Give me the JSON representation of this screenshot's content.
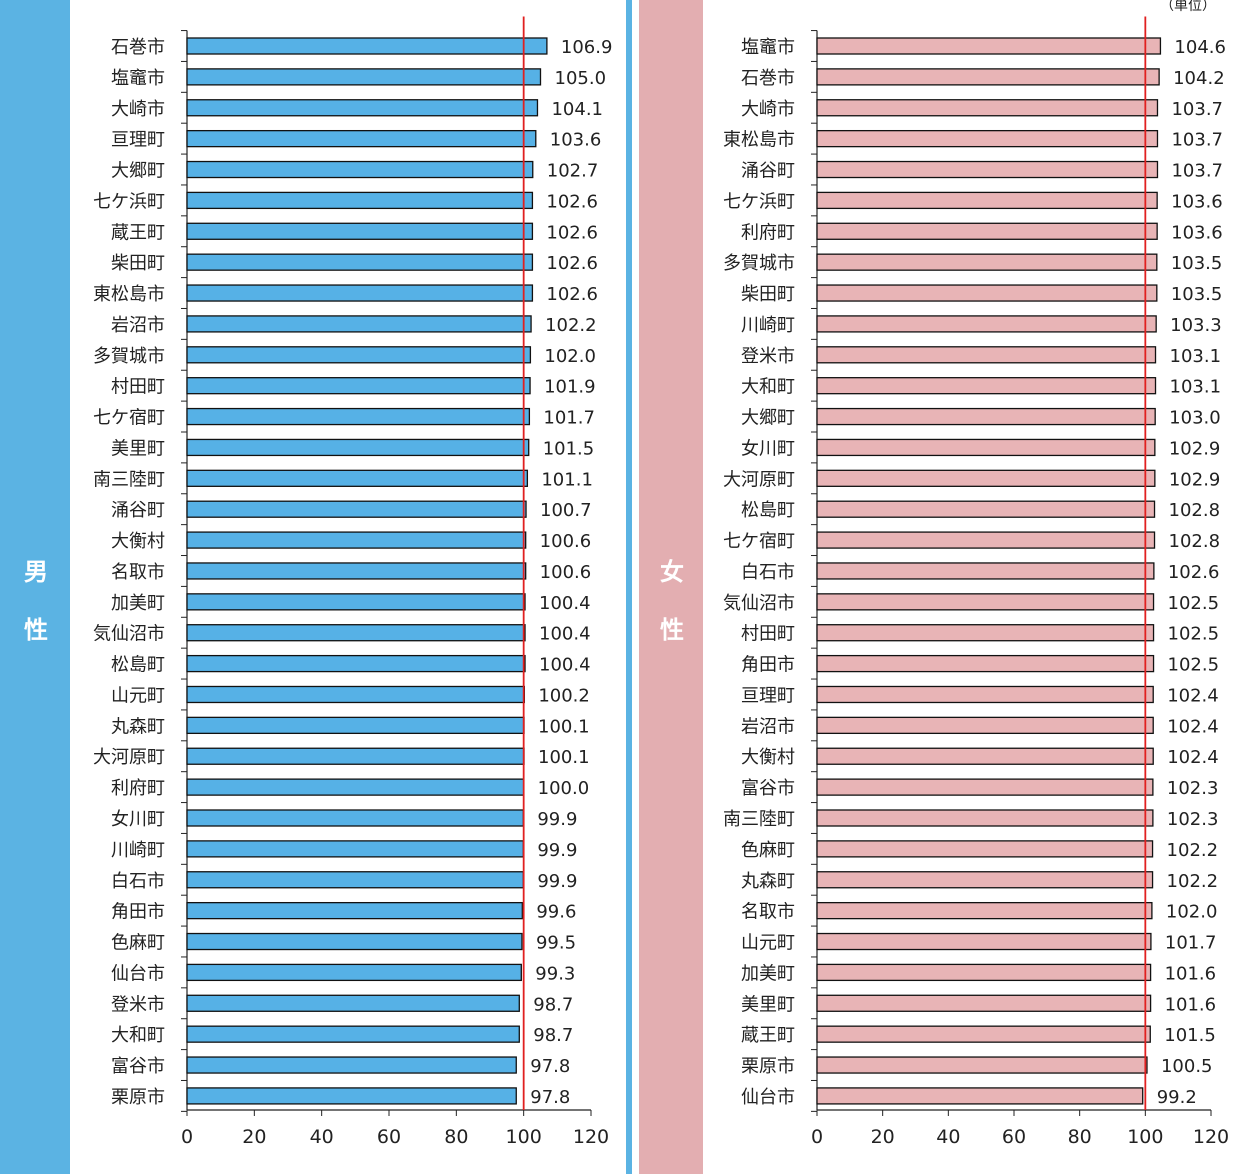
{
  "panels": {
    "male": {
      "label_1": "男",
      "label_2": "性"
    },
    "female": {
      "label_1": "女",
      "label_2": "性"
    }
  },
  "unit_label": "（単位）",
  "colors": {
    "male_bar": "#56b1e6",
    "female_bar": "#e8b4b6",
    "reference_line": "#e02020",
    "male_panel": "#5bb3e3",
    "female_panel": "#e3aeb1"
  },
  "chart_data": [
    {
      "type": "bar",
      "orientation": "horizontal",
      "name": "男性",
      "categories": [
        "石巻市",
        "塩竈市",
        "大崎市",
        "亘理町",
        "大郷町",
        "七ケ浜町",
        "蔵王町",
        "柴田町",
        "東松島市",
        "岩沼市",
        "多賀城市",
        "村田町",
        "七ケ宿町",
        "美里町",
        "南三陸町",
        "涌谷町",
        "大衡村",
        "名取市",
        "加美町",
        "気仙沼市",
        "松島町",
        "山元町",
        "丸森町",
        "大河原町",
        "利府町",
        "女川町",
        "川崎町",
        "白石市",
        "角田市",
        "色麻町",
        "仙台市",
        "登米市",
        "大和町",
        "富谷市",
        "栗原市"
      ],
      "values": [
        106.9,
        105.0,
        104.1,
        103.6,
        102.7,
        102.6,
        102.6,
        102.6,
        102.6,
        102.2,
        102.0,
        101.9,
        101.7,
        101.5,
        101.1,
        100.7,
        100.6,
        100.6,
        100.4,
        100.4,
        100.4,
        100.2,
        100.1,
        100.1,
        100.0,
        99.9,
        99.9,
        99.9,
        99.6,
        99.5,
        99.3,
        98.7,
        98.7,
        97.8,
        97.8
      ],
      "value_labels": [
        "106.9",
        "105.0",
        "104.1",
        "103.6",
        "102.7",
        "102.6",
        "102.6",
        "102.6",
        "102.6",
        "102.2",
        "102.0",
        "101.9",
        "101.7",
        "101.5",
        "101.1",
        "100.7",
        "100.6",
        "100.6",
        "100.4",
        "100.4",
        "100.4",
        "100.2",
        "100.1",
        "100.1",
        "100.0",
        "99.9",
        "99.9",
        "99.9",
        "99.6",
        "99.5",
        "99.3",
        "98.7",
        "98.7",
        "97.8",
        "97.8"
      ],
      "xlim": [
        0,
        120
      ],
      "xticks": [
        "0",
        "20",
        "40",
        "60",
        "80",
        "100",
        "120"
      ],
      "reference_line": 100
    },
    {
      "type": "bar",
      "orientation": "horizontal",
      "name": "女性",
      "categories": [
        "塩竈市",
        "石巻市",
        "大崎市",
        "東松島市",
        "涌谷町",
        "七ケ浜町",
        "利府町",
        "多賀城市",
        "柴田町",
        "川崎町",
        "登米市",
        "大和町",
        "大郷町",
        "女川町",
        "大河原町",
        "松島町",
        "七ケ宿町",
        "白石市",
        "気仙沼市",
        "村田町",
        "角田市",
        "亘理町",
        "岩沼市",
        "大衡村",
        "富谷市",
        "南三陸町",
        "色麻町",
        "丸森町",
        "名取市",
        "山元町",
        "加美町",
        "美里町",
        "蔵王町",
        "栗原市",
        "仙台市"
      ],
      "values": [
        104.6,
        104.2,
        103.7,
        103.7,
        103.7,
        103.6,
        103.6,
        103.5,
        103.5,
        103.3,
        103.1,
        103.1,
        103.0,
        102.9,
        102.9,
        102.8,
        102.8,
        102.6,
        102.5,
        102.5,
        102.5,
        102.4,
        102.4,
        102.4,
        102.3,
        102.3,
        102.2,
        102.2,
        102.0,
        101.7,
        101.6,
        101.6,
        101.5,
        100.5,
        99.2
      ],
      "value_labels": [
        "104.6",
        "104.2",
        "103.7",
        "103.7",
        "103.7",
        "103.6",
        "103.6",
        "103.5",
        "103.5",
        "103.3",
        "103.1",
        "103.1",
        "103.0",
        "102.9",
        "102.9",
        "102.8",
        "102.8",
        "102.6",
        "102.5",
        "102.5",
        "102.5",
        "102.4",
        "102.4",
        "102.4",
        "102.3",
        "102.3",
        "102.2",
        "102.2",
        "102.0",
        "101.7",
        "101.6",
        "101.6",
        "101.5",
        "100.5",
        "99.2"
      ],
      "xlim": [
        0,
        120
      ],
      "xticks": [
        "0",
        "20",
        "40",
        "60",
        "80",
        "100",
        "120"
      ],
      "reference_line": 100
    }
  ]
}
